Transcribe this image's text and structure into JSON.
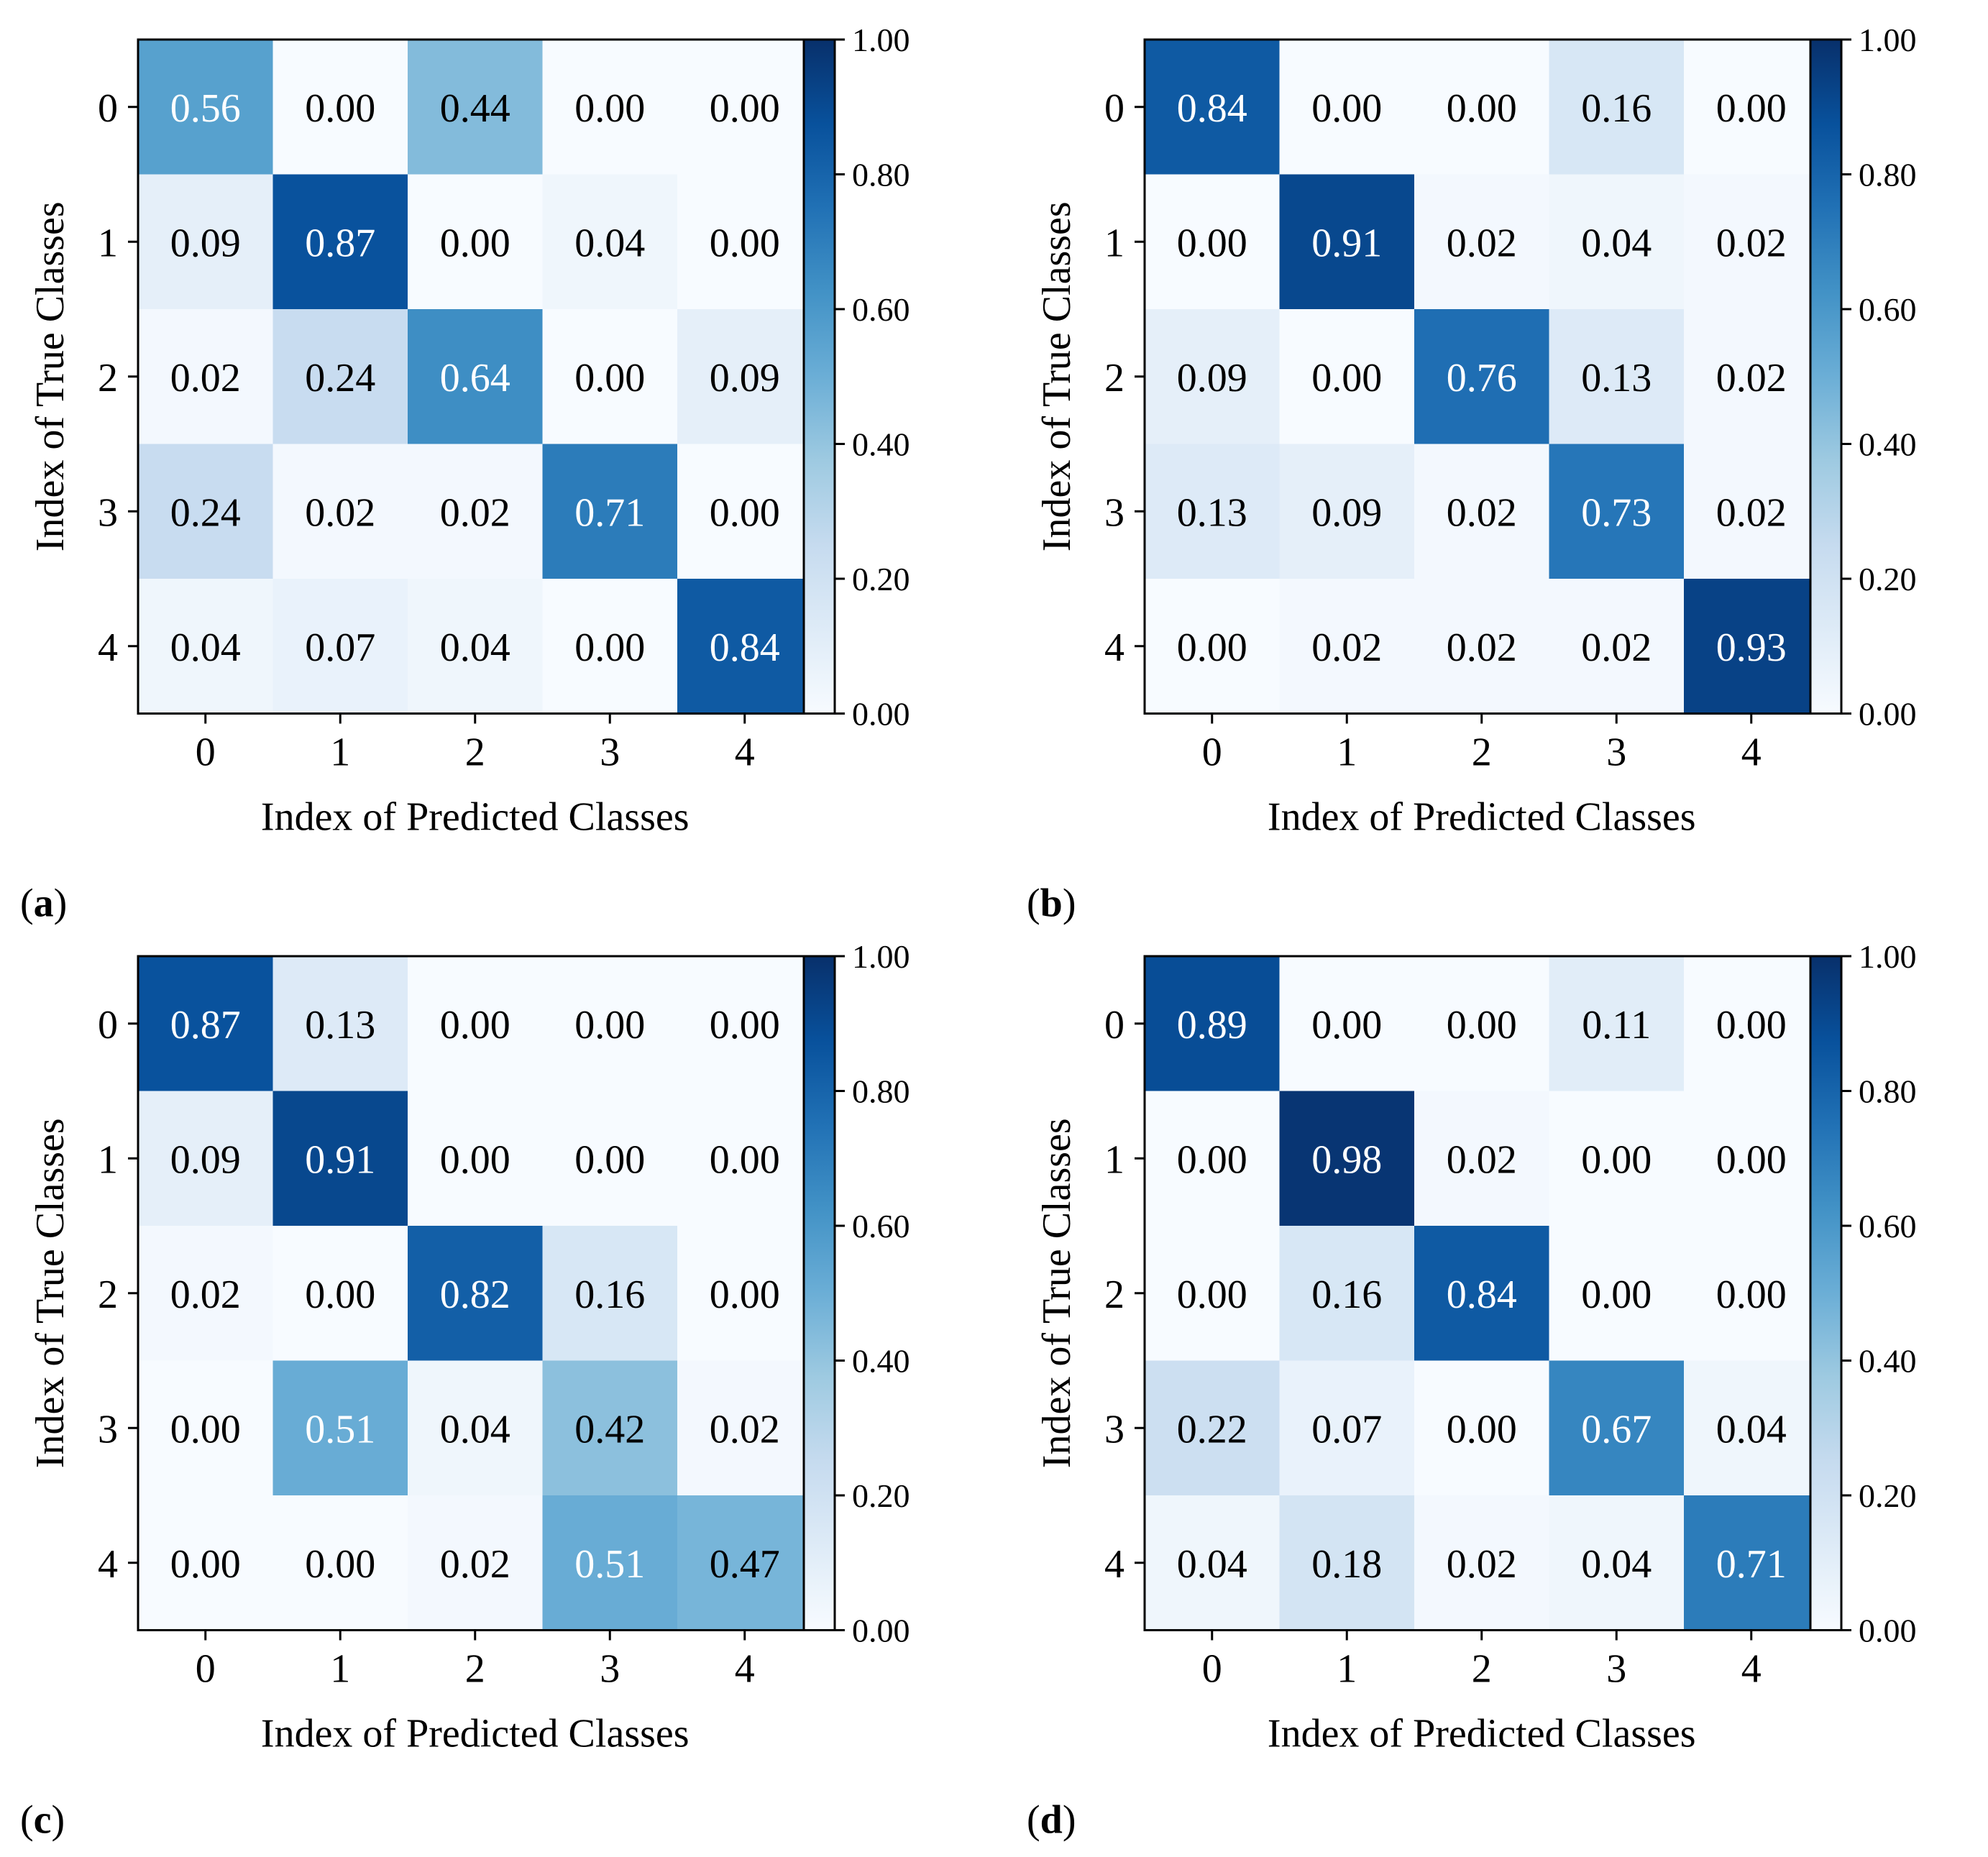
{
  "chart_data": [
    {
      "type": "heatmap",
      "panel_label": "a",
      "xlabel": "Index of Predicted Classes",
      "ylabel": "Index of True Classes",
      "x_ticks": [
        "0",
        "1",
        "2",
        "3",
        "4"
      ],
      "y_ticks": [
        "0",
        "1",
        "2",
        "3",
        "4"
      ],
      "values": [
        [
          0.56,
          0.0,
          0.44,
          0.0,
          0.0
        ],
        [
          0.09,
          0.87,
          0.0,
          0.04,
          0.0
        ],
        [
          0.02,
          0.24,
          0.64,
          0.0,
          0.09
        ],
        [
          0.24,
          0.02,
          0.02,
          0.71,
          0.0
        ],
        [
          0.04,
          0.07,
          0.04,
          0.0,
          0.84
        ]
      ],
      "colorbar_ticks": [
        "0.00",
        "0.20",
        "0.40",
        "0.60",
        "0.80",
        "1.00"
      ],
      "vlim": [
        0,
        1
      ],
      "colormap": "Blues"
    },
    {
      "type": "heatmap",
      "panel_label": "b",
      "xlabel": "Index of Predicted Classes",
      "ylabel": "Index of True Classes",
      "x_ticks": [
        "0",
        "1",
        "2",
        "3",
        "4"
      ],
      "y_ticks": [
        "0",
        "1",
        "2",
        "3",
        "4"
      ],
      "values": [
        [
          0.84,
          0.0,
          0.0,
          0.16,
          0.0
        ],
        [
          0.0,
          0.91,
          0.02,
          0.04,
          0.02
        ],
        [
          0.09,
          0.0,
          0.76,
          0.13,
          0.02
        ],
        [
          0.13,
          0.09,
          0.02,
          0.73,
          0.02
        ],
        [
          0.0,
          0.02,
          0.02,
          0.02,
          0.93
        ]
      ],
      "colorbar_ticks": [
        "0.00",
        "0.20",
        "0.40",
        "0.60",
        "0.80",
        "1.00"
      ],
      "vlim": [
        0,
        1
      ],
      "colormap": "Blues"
    },
    {
      "type": "heatmap",
      "panel_label": "c",
      "xlabel": "Index of Predicted Classes",
      "ylabel": "Index of True Classes",
      "x_ticks": [
        "0",
        "1",
        "2",
        "3",
        "4"
      ],
      "y_ticks": [
        "0",
        "1",
        "2",
        "3",
        "4"
      ],
      "values": [
        [
          0.87,
          0.13,
          0.0,
          0.0,
          0.0
        ],
        [
          0.09,
          0.91,
          0.0,
          0.0,
          0.0
        ],
        [
          0.02,
          0.0,
          0.82,
          0.16,
          0.0
        ],
        [
          0.0,
          0.51,
          0.04,
          0.42,
          0.02
        ],
        [
          0.0,
          0.0,
          0.02,
          0.51,
          0.47
        ]
      ],
      "colorbar_ticks": [
        "0.00",
        "0.20",
        "0.40",
        "0.60",
        "0.80",
        "1.00"
      ],
      "vlim": [
        0,
        1
      ],
      "colormap": "Blues"
    },
    {
      "type": "heatmap",
      "panel_label": "d",
      "xlabel": "Index of Predicted Classes",
      "ylabel": "Index of True Classes",
      "x_ticks": [
        "0",
        "1",
        "2",
        "3",
        "4"
      ],
      "y_ticks": [
        "0",
        "1",
        "2",
        "3",
        "4"
      ],
      "values": [
        [
          0.89,
          0.0,
          0.0,
          0.11,
          0.0
        ],
        [
          0.0,
          0.98,
          0.02,
          0.0,
          0.0
        ],
        [
          0.0,
          0.16,
          0.84,
          0.0,
          0.0
        ],
        [
          0.22,
          0.07,
          0.0,
          0.67,
          0.04
        ],
        [
          0.04,
          0.18,
          0.02,
          0.04,
          0.71
        ]
      ],
      "colorbar_ticks": [
        "0.00",
        "0.20",
        "0.40",
        "0.60",
        "0.80",
        "1.00"
      ],
      "vlim": [
        0,
        1
      ],
      "colormap": "Blues"
    }
  ]
}
